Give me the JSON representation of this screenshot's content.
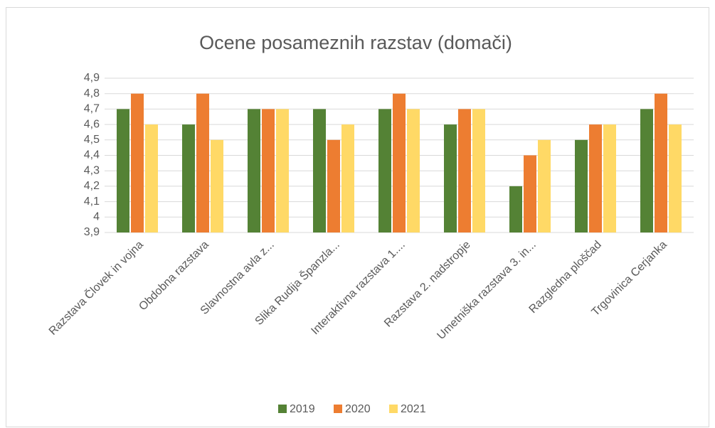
{
  "chart_data": {
    "type": "bar",
    "title": "Ocene posameznih razstav (domači)",
    "categories": [
      "Razstava Človek in vojna",
      "Obdobna razstava",
      "Slavnostna avla z...",
      "Slika Rudija Španzla...",
      "Interaktivna razstava 1....",
      "Razstava 2. nadstropje",
      "Umetniška razstava 3. in...",
      "Razgledna ploščad",
      "Trgovinica Cerjanka"
    ],
    "series": [
      {
        "name": "2019",
        "color": "#548235",
        "values": [
          4.7,
          4.6,
          4.7,
          4.7,
          4.7,
          4.6,
          4.2,
          4.5,
          4.7
        ]
      },
      {
        "name": "2020",
        "color": "#ed7d31",
        "values": [
          4.8,
          4.8,
          4.7,
          4.5,
          4.8,
          4.7,
          4.4,
          4.6,
          4.8
        ]
      },
      {
        "name": "2021",
        "color": "#ffd966",
        "values": [
          4.6,
          4.5,
          4.7,
          4.6,
          4.7,
          4.7,
          4.5,
          4.6,
          4.6
        ]
      }
    ],
    "ylim": [
      3.9,
      4.9
    ],
    "yticks": [
      {
        "value": 3.9,
        "label": "3,9"
      },
      4,
      {
        "value": 4.1,
        "label": "4,1"
      },
      {
        "value": 4.2,
        "label": "4,2"
      },
      {
        "value": 4.3,
        "label": "4,3"
      },
      {
        "value": 4.4,
        "label": "4,4"
      },
      {
        "value": 4.5,
        "label": "4,5"
      },
      {
        "value": 4.6,
        "label": "4,6"
      },
      {
        "value": 4.7,
        "label": "4,7"
      },
      {
        "value": 4.8,
        "label": "4,8"
      },
      {
        "value": 4.9,
        "label": "4,9"
      }
    ],
    "grid": true,
    "legend": "bottom"
  }
}
